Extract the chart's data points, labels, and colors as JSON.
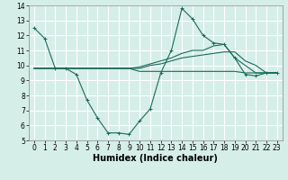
{
  "line1": {
    "x": [
      0,
      1,
      2,
      3,
      4,
      5,
      6,
      7,
      8,
      9,
      10,
      11,
      12,
      13,
      14,
      15,
      16,
      17,
      18,
      19,
      20,
      21,
      22,
      23
    ],
    "y": [
      12.5,
      11.8,
      9.8,
      9.8,
      9.4,
      7.7,
      6.5,
      5.5,
      5.5,
      5.4,
      6.3,
      7.1,
      9.5,
      11.0,
      13.8,
      13.1,
      12.0,
      11.5,
      11.4,
      10.5,
      9.4,
      9.3,
      9.5,
      9.5
    ],
    "color": "#1a6b5a",
    "marker": "+"
  },
  "line2": {
    "x": [
      0,
      1,
      2,
      3,
      4,
      5,
      6,
      7,
      8,
      9,
      10,
      11,
      12,
      13,
      14,
      15,
      16,
      17,
      18,
      19,
      20,
      21,
      22,
      23
    ],
    "y": [
      9.8,
      9.8,
      9.8,
      9.8,
      9.8,
      9.8,
      9.8,
      9.8,
      9.8,
      9.8,
      9.9,
      10.1,
      10.3,
      10.5,
      10.8,
      11.0,
      11.0,
      11.3,
      11.4,
      10.5,
      10.0,
      9.5,
      9.5,
      9.5
    ]
  },
  "line3": {
    "x": [
      0,
      1,
      2,
      3,
      4,
      5,
      6,
      7,
      8,
      9,
      10,
      11,
      12,
      13,
      14,
      15,
      16,
      17,
      18,
      19,
      20,
      21,
      22,
      23
    ],
    "y": [
      9.8,
      9.8,
      9.8,
      9.8,
      9.8,
      9.8,
      9.8,
      9.8,
      9.8,
      9.8,
      9.8,
      10.0,
      10.1,
      10.3,
      10.5,
      10.6,
      10.7,
      10.8,
      10.9,
      10.9,
      10.3,
      10.0,
      9.5,
      9.5
    ]
  },
  "line4": {
    "x": [
      0,
      1,
      2,
      3,
      4,
      5,
      6,
      7,
      8,
      9,
      10,
      11,
      12,
      13,
      14,
      15,
      16,
      17,
      18,
      19,
      20,
      21,
      22,
      23
    ],
    "y": [
      9.8,
      9.8,
      9.8,
      9.8,
      9.8,
      9.8,
      9.8,
      9.8,
      9.8,
      9.8,
      9.6,
      9.6,
      9.6,
      9.6,
      9.6,
      9.6,
      9.6,
      9.6,
      9.6,
      9.6,
      9.5,
      9.5,
      9.5,
      9.5
    ]
  },
  "xlabel": "Humidex (Indice chaleur)",
  "xlim": [
    -0.5,
    23.5
  ],
  "ylim": [
    5,
    14
  ],
  "yticks": [
    5,
    6,
    7,
    8,
    9,
    10,
    11,
    12,
    13,
    14
  ],
  "xticks": [
    0,
    1,
    2,
    3,
    4,
    5,
    6,
    7,
    8,
    9,
    10,
    11,
    12,
    13,
    14,
    15,
    16,
    17,
    18,
    19,
    20,
    21,
    22,
    23
  ],
  "bg_color": "#d6eee8",
  "grid_color": "#ffffff",
  "line_color": "#1a6b5a",
  "tick_fontsize": 5.5,
  "label_fontsize": 7,
  "linewidth": 0.8,
  "marker_size": 3.0,
  "fig_width": 3.2,
  "fig_height": 2.0,
  "dpi": 100
}
